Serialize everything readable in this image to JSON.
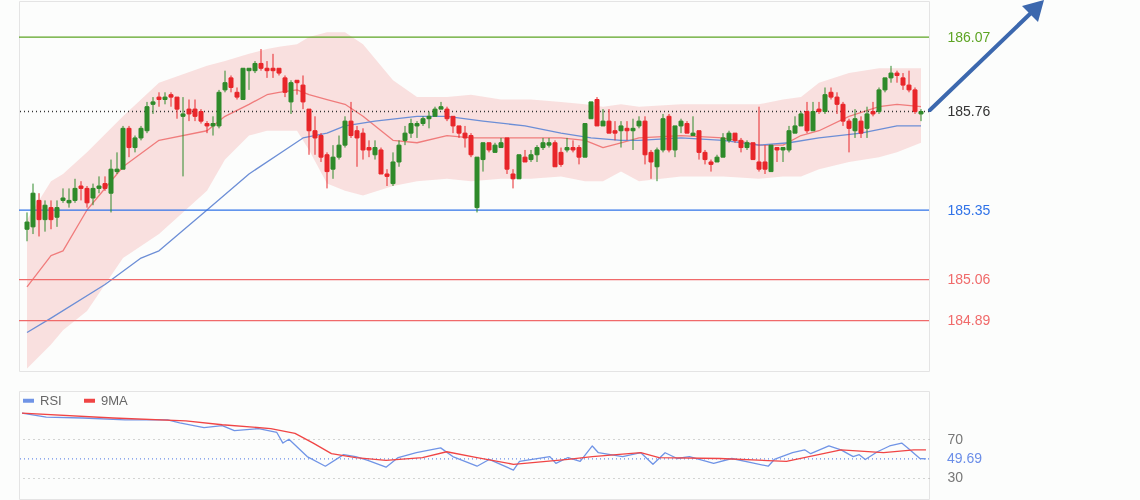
{
  "chart_data": [
    {
      "type": "candlestick",
      "tick_labels": "y",
      "ylim": [
        184.68,
        186.22
      ],
      "yticks": [
        184.89,
        185.06,
        185.35,
        185.76,
        186.07
      ],
      "categories": [
        null,
        null,
        null,
        null,
        null,
        null,
        null,
        null,
        null,
        null,
        null,
        null,
        null,
        null,
        null,
        null,
        null,
        null,
        null,
        null,
        null,
        null,
        null,
        null,
        null,
        null,
        null,
        null,
        null,
        null,
        null,
        null,
        null,
        null,
        null,
        null,
        null,
        null,
        null,
        null,
        null,
        null,
        null,
        null,
        null,
        null,
        null,
        null,
        null,
        null,
        null,
        null,
        null,
        null,
        null,
        null,
        null,
        null,
        null,
        null,
        null,
        null,
        null,
        null,
        null,
        null,
        null,
        null,
        null,
        null,
        null,
        null,
        null,
        null,
        null,
        null,
        null,
        null,
        null,
        null,
        null,
        null,
        null,
        null,
        null,
        null,
        null,
        null,
        null,
        null,
        null,
        null,
        null,
        null,
        null,
        null,
        null,
        null,
        null,
        null,
        null,
        null,
        null,
        null,
        null,
        null,
        null,
        null,
        null,
        null,
        null,
        null,
        null,
        null,
        null,
        null,
        null,
        null,
        null,
        null,
        null,
        null,
        null,
        null,
        null,
        null,
        null,
        null,
        null,
        null,
        null,
        null,
        null,
        null,
        null,
        null,
        null,
        null,
        null,
        null,
        null,
        null,
        null,
        null,
        null,
        null,
        null,
        null,
        null,
        null
      ],
      "ohlc": [
        [
          185.27,
          185.34,
          185.22,
          185.3
        ],
        [
          185.28,
          185.46,
          185.25,
          185.42
        ],
        [
          185.39,
          185.42,
          185.24,
          185.31
        ],
        [
          185.31,
          185.39,
          185.26,
          185.37
        ],
        [
          185.36,
          185.39,
          185.27,
          185.31
        ],
        [
          185.32,
          185.39,
          185.28,
          185.36
        ],
        [
          185.39,
          185.44,
          185.38,
          185.4
        ],
        [
          185.38,
          185.44,
          185.36,
          185.39
        ],
        [
          185.39,
          185.48,
          185.38,
          185.44
        ],
        [
          185.45,
          185.47,
          185.39,
          185.44
        ],
        [
          185.44,
          185.45,
          185.36,
          185.38
        ],
        [
          185.4,
          185.46,
          185.37,
          185.44
        ],
        [
          185.44,
          185.49,
          185.42,
          185.45
        ],
        [
          185.46,
          185.49,
          185.43,
          185.44
        ],
        [
          185.42,
          185.56,
          185.34,
          185.52
        ],
        [
          185.51,
          185.59,
          185.5,
          185.52
        ],
        [
          185.52,
          185.7,
          185.52,
          185.69
        ],
        [
          185.69,
          185.7,
          185.57,
          185.61
        ],
        [
          185.61,
          185.66,
          185.59,
          185.65
        ],
        [
          185.65,
          185.7,
          185.64,
          185.69
        ],
        [
          185.68,
          185.8,
          185.67,
          185.78
        ],
        [
          185.79,
          185.82,
          185.75,
          185.8
        ],
        [
          185.82,
          185.84,
          185.78,
          185.81
        ],
        [
          185.81,
          185.84,
          185.79,
          185.82
        ],
        [
          185.83,
          185.84,
          185.78,
          185.82
        ],
        [
          185.82,
          185.82,
          185.73,
          185.77
        ],
        [
          185.74,
          185.82,
          185.49,
          185.75
        ],
        [
          185.77,
          185.81,
          185.72,
          185.75
        ],
        [
          185.77,
          185.81,
          185.72,
          185.74
        ],
        [
          185.76,
          185.77,
          185.71,
          185.72
        ],
        [
          185.71,
          185.72,
          185.67,
          185.7
        ],
        [
          185.7,
          185.74,
          185.66,
          185.71
        ],
        [
          185.7,
          185.85,
          185.69,
          185.84
        ],
        [
          185.85,
          185.93,
          185.84,
          185.88
        ],
        [
          185.9,
          185.91,
          185.84,
          185.86
        ],
        [
          185.84,
          185.86,
          185.81,
          185.82
        ],
        [
          185.81,
          185.94,
          185.81,
          185.94
        ],
        [
          185.93,
          185.94,
          185.85,
          185.94
        ],
        [
          185.93,
          185.97,
          185.92,
          185.96
        ],
        [
          185.96,
          186.02,
          185.93,
          185.94
        ],
        [
          185.94,
          185.97,
          185.9,
          185.93
        ],
        [
          185.94,
          186.0,
          185.9,
          185.93
        ],
        [
          185.94,
          185.94,
          185.91,
          185.92
        ],
        [
          185.9,
          185.91,
          185.82,
          185.84
        ],
        [
          185.8,
          185.89,
          185.75,
          185.88
        ],
        [
          185.89,
          185.89,
          185.83,
          185.88
        ],
        [
          185.87,
          185.91,
          185.77,
          185.8
        ],
        [
          185.77,
          185.77,
          185.58,
          185.68
        ],
        [
          185.68,
          185.74,
          185.58,
          185.65
        ],
        [
          185.66,
          185.67,
          185.55,
          185.57
        ],
        [
          185.58,
          185.59,
          185.44,
          185.51
        ],
        [
          185.52,
          185.62,
          185.48,
          185.57
        ],
        [
          185.57,
          185.66,
          185.56,
          185.62
        ],
        [
          185.62,
          185.74,
          185.61,
          185.72
        ],
        [
          185.72,
          185.8,
          185.65,
          185.66
        ],
        [
          185.68,
          185.7,
          185.53,
          185.65
        ],
        [
          185.67,
          185.69,
          185.56,
          185.6
        ],
        [
          185.61,
          185.64,
          185.57,
          185.6
        ],
        [
          185.58,
          185.64,
          185.56,
          185.61
        ],
        [
          185.6,
          185.61,
          185.5,
          185.5
        ],
        [
          185.5,
          185.52,
          185.45,
          185.49
        ],
        [
          185.46,
          185.59,
          185.45,
          185.55
        ],
        [
          185.55,
          185.64,
          185.53,
          185.62
        ],
        [
          185.64,
          185.7,
          185.62,
          185.67
        ],
        [
          185.67,
          185.73,
          185.65,
          185.71
        ],
        [
          185.7,
          185.72,
          185.65,
          185.71
        ],
        [
          185.71,
          185.74,
          185.7,
          185.73
        ],
        [
          185.73,
          185.76,
          185.69,
          185.74
        ],
        [
          185.74,
          185.78,
          185.74,
          185.77
        ],
        [
          185.77,
          185.8,
          185.77,
          185.78
        ],
        [
          185.77,
          185.78,
          185.72,
          185.73
        ],
        [
          185.74,
          185.74,
          185.67,
          185.7
        ],
        [
          185.7,
          185.7,
          185.65,
          185.67
        ],
        [
          185.67,
          185.7,
          185.61,
          185.65
        ],
        [
          185.66,
          185.67,
          185.57,
          185.58
        ],
        [
          185.36,
          185.57,
          185.34,
          185.57
        ],
        [
          185.56,
          185.63,
          185.51,
          185.63
        ],
        [
          185.63,
          185.63,
          185.59,
          185.6
        ],
        [
          185.59,
          185.63,
          185.59,
          185.62
        ],
        [
          185.61,
          185.65,
          185.61,
          185.63
        ],
        [
          185.65,
          185.65,
          185.5,
          185.52
        ],
        [
          185.5,
          185.52,
          185.44,
          185.48
        ],
        [
          185.48,
          185.58,
          185.48,
          185.58
        ],
        [
          185.57,
          185.6,
          185.55,
          185.55
        ],
        [
          185.56,
          185.6,
          185.55,
          185.58
        ],
        [
          185.58,
          185.62,
          185.55,
          185.61
        ],
        [
          185.61,
          185.65,
          185.6,
          185.63
        ],
        [
          185.62,
          185.65,
          185.61,
          185.63
        ],
        [
          185.63,
          185.64,
          185.53,
          185.53
        ],
        [
          185.59,
          185.61,
          185.53,
          185.54
        ],
        [
          185.6,
          185.65,
          185.59,
          185.61
        ],
        [
          185.61,
          185.64,
          185.59,
          185.6
        ],
        [
          185.61,
          185.62,
          185.54,
          185.57
        ],
        [
          185.57,
          185.71,
          185.57,
          185.71
        ],
        [
          185.73,
          185.8,
          185.73,
          185.8
        ],
        [
          185.81,
          185.82,
          185.7,
          185.7
        ],
        [
          185.7,
          185.77,
          185.7,
          185.72
        ],
        [
          185.72,
          185.77,
          185.67,
          185.67
        ],
        [
          185.68,
          185.72,
          185.64,
          185.67
        ],
        [
          185.68,
          185.72,
          185.61,
          185.7
        ],
        [
          185.69,
          185.72,
          185.64,
          185.68
        ],
        [
          185.68,
          185.73,
          185.6,
          185.69
        ],
        [
          185.7,
          185.74,
          185.69,
          185.72
        ],
        [
          185.72,
          185.74,
          185.54,
          185.58
        ],
        [
          185.59,
          185.6,
          185.48,
          185.55
        ],
        [
          185.53,
          185.61,
          185.47,
          185.6
        ],
        [
          185.6,
          185.75,
          185.59,
          185.73
        ],
        [
          185.74,
          185.75,
          185.59,
          185.6
        ],
        [
          185.6,
          185.7,
          185.57,
          185.7
        ],
        [
          185.7,
          185.73,
          185.67,
          185.72
        ],
        [
          185.71,
          185.72,
          185.67,
          185.67
        ],
        [
          185.66,
          185.74,
          185.66,
          185.67
        ],
        [
          185.68,
          185.68,
          185.56,
          185.59
        ],
        [
          185.59,
          185.6,
          185.54,
          185.56
        ],
        [
          185.55,
          185.56,
          185.51,
          185.54
        ],
        [
          185.55,
          185.58,
          185.55,
          185.57
        ],
        [
          185.57,
          185.67,
          185.57,
          185.65
        ],
        [
          185.64,
          185.68,
          185.63,
          185.67
        ],
        [
          185.67,
          185.67,
          185.63,
          185.64
        ],
        [
          185.64,
          185.65,
          185.59,
          185.61
        ],
        [
          185.61,
          185.64,
          185.6,
          185.63
        ],
        [
          185.63,
          185.63,
          185.56,
          185.56
        ],
        [
          185.55,
          185.78,
          185.51,
          185.52
        ],
        [
          185.55,
          185.62,
          185.5,
          185.52
        ],
        [
          185.51,
          185.62,
          185.51,
          185.62
        ],
        [
          185.61,
          185.61,
          185.55,
          185.6
        ],
        [
          185.6,
          185.61,
          185.55,
          185.61
        ],
        [
          185.6,
          185.7,
          185.59,
          185.68
        ],
        [
          185.67,
          185.74,
          185.67,
          185.7
        ],
        [
          185.7,
          185.76,
          185.7,
          185.75
        ],
        [
          185.76,
          185.8,
          185.67,
          185.68
        ],
        [
          185.68,
          185.8,
          185.68,
          185.76
        ],
        [
          185.77,
          185.8,
          185.75,
          185.76
        ],
        [
          185.76,
          185.86,
          185.75,
          185.83
        ],
        [
          185.84,
          185.86,
          185.81,
          185.82
        ],
        [
          185.82,
          185.84,
          185.75,
          185.79
        ],
        [
          185.79,
          185.8,
          185.7,
          185.72
        ],
        [
          185.72,
          185.73,
          185.59,
          185.69
        ],
        [
          185.68,
          185.77,
          185.65,
          185.73
        ],
        [
          185.72,
          185.74,
          185.65,
          185.67
        ],
        [
          185.69,
          185.78,
          185.65,
          185.75
        ],
        [
          185.76,
          185.8,
          185.74,
          185.75
        ],
        [
          185.76,
          185.86,
          185.75,
          185.85
        ],
        [
          185.85,
          185.9,
          185.84,
          185.9
        ],
        [
          185.9,
          185.95,
          185.88,
          185.92
        ],
        [
          185.92,
          185.93,
          185.88,
          185.91
        ],
        [
          185.9,
          185.92,
          185.85,
          185.87
        ],
        [
          185.87,
          185.93,
          185.84,
          185.85
        ],
        [
          185.85,
          185.86,
          185.75,
          185.76
        ],
        [
          185.75,
          185.77,
          185.72,
          185.76
        ]
      ],
      "series": [
        {
          "type": "line",
          "color": "#f07c7c",
          "values": [
            185.03,
            null,
            null,
            null,
            185.16,
            null,
            185.18,
            null,
            null,
            null,
            185.35,
            null,
            null,
            null,
            null,
            null,
            185.53,
            null,
            null,
            null,
            null,
            null,
            185.64,
            null,
            null,
            null,
            null,
            null,
            null,
            null,
            185.68,
            null,
            null,
            185.74,
            null,
            null,
            null,
            185.79,
            null,
            null,
            185.83,
            null,
            185.84,
            null,
            null,
            185.85,
            null,
            185.83,
            null,
            null,
            185.81,
            null,
            null,
            185.79,
            null,
            null,
            185.74,
            null,
            null,
            null,
            null,
            185.64,
            null,
            null,
            null,
            185.63,
            null,
            null,
            null,
            null,
            185.66,
            null,
            null,
            null,
            185.65,
            null,
            null,
            null,
            null,
            185.65,
            null,
            null,
            null,
            null,
            185.65,
            null,
            null,
            null,
            null,
            185.65,
            null,
            null,
            null,
            185.64,
            null,
            null,
            185.61,
            null,
            null,
            185.63,
            null,
            null,
            185.65,
            null,
            null,
            null,
            null,
            null,
            null,
            185.66,
            null,
            null,
            null,
            null,
            null,
            null,
            185.65,
            null,
            null,
            null,
            null,
            null,
            185.62,
            null,
            null,
            null,
            185.62,
            null,
            null,
            185.66,
            null,
            null,
            185.68,
            null,
            null,
            null,
            null,
            185.74,
            null,
            null,
            null,
            null,
            185.78,
            null,
            null,
            185.79,
            null,
            null,
            null,
            185.78
          ],
          "upper": [
            185.31,
            null,
            null,
            null,
            185.47,
            null,
            185.5,
            null,
            null,
            null,
            185.59,
            null,
            null,
            null,
            null,
            null,
            185.74,
            null,
            null,
            null,
            null,
            null,
            185.88,
            null,
            null,
            null,
            null,
            null,
            null,
            null,
            185.95,
            null,
            null,
            185.97,
            null,
            null,
            null,
            186.0,
            null,
            null,
            186.02,
            null,
            186.03,
            null,
            null,
            186.04,
            null,
            186.07,
            null,
            null,
            186.09,
            null,
            null,
            186.09,
            null,
            null,
            186.04,
            null,
            null,
            null,
            null,
            185.89,
            null,
            null,
            null,
            185.82,
            null,
            null,
            null,
            null,
            185.82,
            null,
            null,
            null,
            185.83,
            null,
            null,
            null,
            null,
            185.81,
            null,
            null,
            null,
            null,
            185.81,
            null,
            null,
            null,
            null,
            185.8,
            null,
            null,
            null,
            185.79,
            null,
            null,
            185.78,
            null,
            null,
            185.79,
            null,
            null,
            185.78,
            null,
            null,
            null,
            null,
            null,
            null,
            185.79,
            null,
            null,
            null,
            null,
            null,
            null,
            185.79,
            null,
            null,
            null,
            null,
            null,
            185.79,
            null,
            null,
            null,
            185.81,
            null,
            null,
            185.82,
            null,
            null,
            185.88,
            null,
            null,
            null,
            null,
            185.92,
            null,
            null,
            null,
            null,
            185.94,
            null,
            null,
            185.94,
            null,
            null,
            null,
            185.94
          ],
          "lower": [
            184.69,
            null,
            null,
            null,
            184.79,
            null,
            184.85,
            null,
            null,
            null,
            184.93,
            null,
            null,
            null,
            null,
            null,
            185.15,
            null,
            null,
            null,
            null,
            null,
            185.25,
            null,
            null,
            null,
            null,
            null,
            null,
            null,
            185.43,
            null,
            null,
            185.56,
            null,
            null,
            null,
            185.66,
            null,
            null,
            185.68,
            null,
            185.68,
            null,
            null,
            185.68,
            null,
            185.6,
            null,
            null,
            185.46,
            null,
            null,
            185.43,
            null,
            null,
            185.41,
            null,
            null,
            null,
            null,
            185.45,
            null,
            null,
            null,
            185.47,
            null,
            null,
            null,
            null,
            185.48,
            null,
            null,
            null,
            185.47,
            null,
            null,
            null,
            null,
            185.48,
            null,
            null,
            null,
            null,
            185.48,
            null,
            null,
            null,
            null,
            185.49,
            null,
            null,
            null,
            185.47,
            null,
            null,
            185.47,
            null,
            null,
            185.51,
            null,
            null,
            185.47,
            null,
            null,
            null,
            null,
            null,
            null,
            185.49,
            null,
            null,
            null,
            null,
            null,
            null,
            185.49,
            null,
            null,
            null,
            null,
            null,
            185.48,
            null,
            null,
            null,
            185.49,
            null,
            null,
            185.49,
            null,
            null,
            185.52,
            null,
            null,
            null,
            null,
            185.55,
            null,
            null,
            null,
            null,
            185.57,
            null,
            null,
            185.59,
            null,
            null,
            null,
            185.63
          ]
        },
        {
          "type": "line",
          "color": "#6c8ed6",
          "values": [
            184.84,
            null,
            null,
            null,
            184.9,
            null,
            null,
            null,
            null,
            null,
            null,
            null,
            null,
            185.04,
            null,
            null,
            null,
            null,
            null,
            185.15,
            null,
            null,
            185.18,
            null,
            null,
            null,
            null,
            null,
            null,
            null,
            185.35,
            null,
            null,
            null,
            null,
            null,
            null,
            185.5,
            null,
            null,
            null,
            null,
            null,
            185.6,
            null,
            null,
            185.65,
            null,
            null,
            null,
            185.67,
            null,
            null,
            185.7,
            null,
            null,
            null,
            null,
            185.72,
            null,
            null,
            null,
            null,
            null,
            null,
            185.74,
            null,
            null,
            null,
            null,
            185.74,
            null,
            null,
            null,
            null,
            null,
            185.72,
            null,
            null,
            null,
            null,
            null,
            null,
            185.7,
            null,
            null,
            null,
            null,
            null,
            185.67,
            null,
            null,
            null,
            null,
            185.65,
            null,
            null,
            null,
            null,
            185.64,
            null,
            null,
            185.64,
            null,
            null,
            null,
            null,
            null,
            null,
            185.65,
            null,
            null,
            null,
            null,
            null,
            null,
            185.64,
            null,
            null,
            null,
            null,
            null,
            185.62,
            null,
            null,
            null,
            null,
            185.63,
            null,
            null,
            null,
            null,
            185.65,
            null,
            null,
            null,
            null,
            null,
            null,
            185.67,
            null,
            null,
            null,
            null,
            null,
            185.7,
            null,
            null,
            null,
            185.7
          ]
        }
      ],
      "ref_lines": [
        {
          "axis": "y",
          "value": 186.07,
          "color": "#5da423"
        },
        {
          "axis": "y",
          "value": 185.76,
          "color": "#333333",
          "line_style": "dotted"
        },
        {
          "axis": "y",
          "value": 185.35,
          "color": "#2f72e8"
        },
        {
          "axis": "y",
          "value": 185.06,
          "color": "#f06a6a"
        },
        {
          "axis": "y",
          "value": 184.89,
          "color": "#f06a6a"
        }
      ]
    },
    {
      "type": "line",
      "tick_labels": "y",
      "ylim": [
        8,
        120
      ],
      "yticks": [
        30,
        70
      ],
      "grid": "y",
      "legend": "top left",
      "categories": [
        null,
        null,
        null,
        null,
        null,
        null,
        null,
        null,
        null,
        null,
        null,
        null,
        null,
        null,
        null,
        null,
        null,
        null,
        null,
        null,
        null,
        null,
        null,
        null,
        null,
        null,
        null,
        null,
        null,
        null,
        null,
        null,
        null,
        null,
        null,
        null,
        null,
        null,
        null,
        null,
        null,
        null,
        null,
        null,
        null,
        null,
        null,
        null,
        null,
        null,
        null,
        null,
        null,
        null,
        null,
        null,
        null,
        null,
        null,
        null,
        null,
        null,
        null,
        null,
        null,
        null,
        null,
        null,
        null,
        null,
        null,
        null,
        null,
        null,
        null,
        null,
        null,
        null,
        null,
        null,
        null,
        null,
        null,
        null,
        null,
        null,
        null,
        null,
        null,
        null,
        null,
        null,
        null,
        null,
        null,
        null,
        null,
        null,
        null,
        null,
        null,
        null,
        null,
        null,
        null,
        null,
        null,
        null,
        null,
        null,
        null,
        null,
        null,
        null,
        null,
        null,
        null,
        null,
        null,
        null,
        null,
        null,
        null,
        null,
        null,
        null,
        null,
        null,
        null,
        null,
        null,
        null,
        null,
        null,
        null,
        null,
        null,
        null,
        null,
        null,
        null,
        null,
        null,
        null,
        null,
        null,
        null,
        null,
        null,
        null
      ],
      "series": [
        {
          "name": "RSI",
          "color": "#7094e6",
          "values": [
            97,
            null,
            null,
            null,
            93,
            null,
            null,
            null,
            null,
            null,
            92,
            null,
            null,
            null,
            null,
            null,
            null,
            90,
            null,
            null,
            null,
            null,
            null,
            null,
            90,
            null,
            87,
            null,
            null,
            null,
            82,
            null,
            null,
            84,
            null,
            79,
            null,
            null,
            null,
            81,
            null,
            null,
            77,
            66,
            70,
            null,
            null,
            52,
            null,
            null,
            42,
            null,
            null,
            54,
            null,
            52,
            null,
            48,
            null,
            null,
            41,
            null,
            51,
            null,
            null,
            56,
            null,
            null,
            null,
            61,
            null,
            52,
            null,
            null,
            null,
            42,
            null,
            49,
            null,
            null,
            null,
            38,
            47,
            null,
            null,
            null,
            null,
            52,
            45,
            null,
            51,
            null,
            47,
            null,
            63,
            56,
            null,
            null,
            null,
            52,
            null,
            null,
            56,
            null,
            44,
            null,
            56,
            null,
            50,
            null,
            52,
            null,
            null,
            null,
            45,
            null,
            null,
            50,
            null,
            null,
            46,
            null,
            null,
            42,
            49,
            null,
            null,
            56,
            null,
            59,
            55,
            null,
            null,
            63,
            null,
            59,
            null,
            52,
            54,
            49,
            null,
            57,
            null,
            63,
            null,
            66,
            61,
            null,
            50,
            49.69
          ]
        },
        {
          "name": "9MA",
          "color": "#f04545",
          "values": [
            97,
            null,
            null,
            null,
            null,
            null,
            null,
            null,
            null,
            null,
            null,
            null,
            null,
            null,
            null,
            92,
            null,
            null,
            null,
            null,
            null,
            null,
            null,
            null,
            null,
            null,
            null,
            89,
            null,
            null,
            null,
            null,
            null,
            85,
            null,
            null,
            null,
            null,
            null,
            null,
            null,
            81,
            null,
            null,
            null,
            76,
            null,
            null,
            66,
            null,
            null,
            55,
            null,
            null,
            null,
            51,
            null,
            null,
            null,
            null,
            48,
            null,
            null,
            null,
            null,
            null,
            51,
            null,
            null,
            null,
            57,
            null,
            null,
            null,
            null,
            51,
            null,
            null,
            null,
            null,
            null,
            44,
            null,
            null,
            null,
            null,
            null,
            null,
            null,
            null,
            49,
            null,
            null,
            null,
            52,
            null,
            null,
            null,
            null,
            null,
            null,
            null,
            56,
            null,
            null,
            51,
            null,
            null,
            null,
            null,
            null,
            null,
            null,
            null,
            null,
            50,
            null,
            null,
            null,
            null,
            null,
            null,
            null,
            null,
            null,
            null,
            47,
            null,
            null,
            null,
            null,
            null,
            null,
            null,
            null,
            59,
            null,
            null,
            null,
            null,
            null,
            null,
            56,
            null,
            null,
            null,
            null,
            59,
            null,
            59
          ]
        }
      ],
      "ref_lines": [
        {
          "axis": "y",
          "value": 49.69,
          "label": "49.69",
          "color": "#6b8ee8",
          "line_style": "dotted"
        }
      ]
    }
  ]
}
